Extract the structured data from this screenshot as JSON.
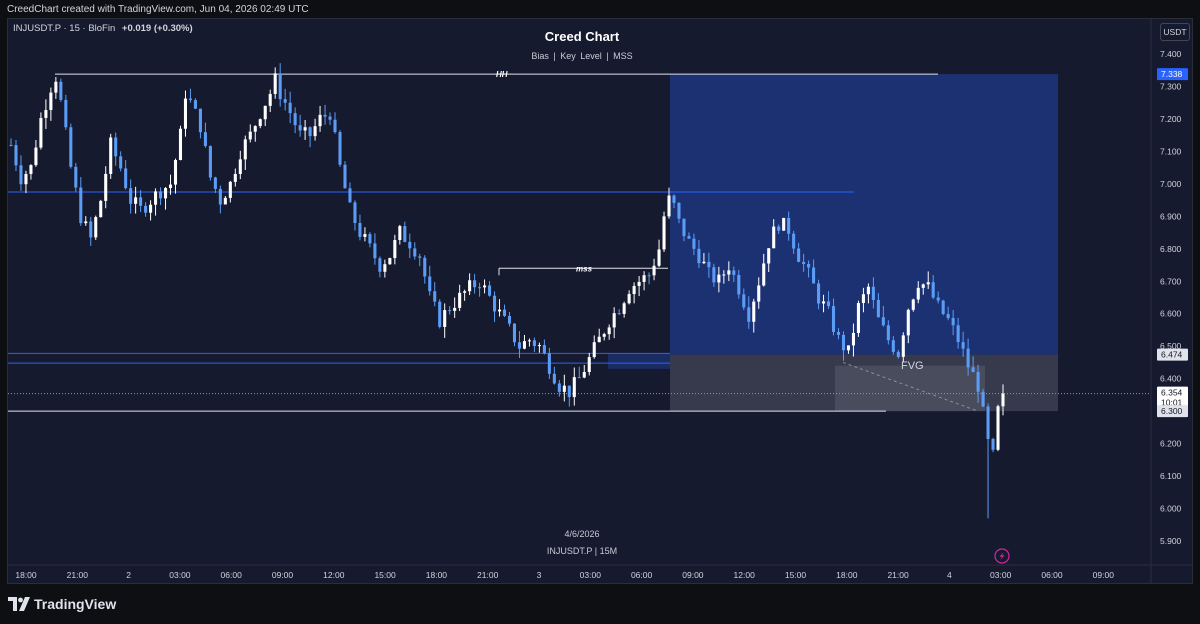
{
  "header": {
    "created_text": "CreedChart created with TradingView.com, Jun 04, 2026 02:49 UTC"
  },
  "legend": {
    "symbol": "INJUSDT.P · 15 · BloFin",
    "change": "+0.019",
    "change_pct": "(+0.30%)"
  },
  "chart": {
    "title": "Creed Chart",
    "subtitle": "Bias  |  Key Level  |  MSS",
    "watermark_date": "4/6/2026",
    "watermark_symbol": "INJUSDT.P  |  15M",
    "currency": "USDT"
  },
  "annotations": {
    "hh": "HH",
    "mss": "mss",
    "fvg": "FVG"
  },
  "price_axis": {
    "ticks": [
      "7.400",
      "7.300",
      "7.200",
      "7.100",
      "7.000",
      "6.900",
      "6.800",
      "6.700",
      "6.600",
      "6.500",
      "6.400",
      "6.200",
      "6.100",
      "6.000",
      "5.900"
    ],
    "tick_values": [
      7.4,
      7.3,
      7.2,
      7.1,
      7.0,
      6.9,
      6.8,
      6.7,
      6.6,
      6.5,
      6.4,
      6.2,
      6.1,
      6.0,
      5.9
    ],
    "badge_top": "7.338",
    "badge_fvg_high": "6.474",
    "badge_last_price": "6.354",
    "badge_countdown": "10:01",
    "badge_fvg_low": "6.300"
  },
  "time_axis": {
    "labels": [
      "18:00",
      "21:00",
      "2",
      "03:00",
      "06:00",
      "09:00",
      "12:00",
      "15:00",
      "18:00",
      "21:00",
      "3",
      "03:00",
      "06:00",
      "09:00",
      "12:00",
      "15:00",
      "18:00",
      "21:00",
      "4",
      "03:00",
      "06:00",
      "09:00"
    ]
  },
  "colors": {
    "background": "#161a2e",
    "candle_up": "#ffffff",
    "candle_down": "#5b9cf6",
    "zone": "#1f3a8a",
    "fvg": "#5d6170",
    "line_blue": "#2962ff",
    "line_white": "#e0e3eb"
  },
  "branding": {
    "logo_text": "TradingView"
  },
  "chart_data": {
    "type": "candlestick",
    "timeframe": "15",
    "ylim": [
      5.87,
      7.43
    ],
    "last_price": 6.354,
    "levels": {
      "hh": 7.338,
      "key_level": 6.975,
      "mss": 6.74,
      "fvg_high": 6.474,
      "fvg_low": 6.3
    },
    "path_points": [
      [
        0,
        7.12
      ],
      [
        2,
        7.02
      ],
      [
        4,
        7.05
      ],
      [
        6,
        7.2
      ],
      [
        8,
        7.3
      ],
      [
        9,
        7.33
      ],
      [
        10,
        7.25
      ],
      [
        12,
        7.05
      ],
      [
        14,
        6.9
      ],
      [
        16,
        6.83
      ],
      [
        18,
        6.95
      ],
      [
        20,
        7.12
      ],
      [
        22,
        7.05
      ],
      [
        24,
        6.95
      ],
      [
        26,
        6.92
      ],
      [
        28,
        6.95
      ],
      [
        30,
        6.98
      ],
      [
        32,
        7.0
      ],
      [
        34,
        7.15
      ],
      [
        35,
        7.28
      ],
      [
        36,
        7.25
      ],
      [
        38,
        7.18
      ],
      [
        40,
        7.02
      ],
      [
        42,
        6.95
      ],
      [
        44,
        7.0
      ],
      [
        46,
        7.1
      ],
      [
        48,
        7.15
      ],
      [
        50,
        7.22
      ],
      [
        52,
        7.28
      ],
      [
        53,
        7.32
      ],
      [
        54,
        7.28
      ],
      [
        56,
        7.22
      ],
      [
        58,
        7.15
      ],
      [
        60,
        7.15
      ],
      [
        62,
        7.2
      ],
      [
        64,
        7.22
      ],
      [
        66,
        7.05
      ],
      [
        68,
        6.92
      ],
      [
        70,
        6.85
      ],
      [
        72,
        6.8
      ],
      [
        74,
        6.75
      ],
      [
        76,
        6.78
      ],
      [
        78,
        6.85
      ],
      [
        80,
        6.82
      ],
      [
        82,
        6.78
      ],
      [
        84,
        6.65
      ],
      [
        86,
        6.58
      ],
      [
        88,
        6.62
      ],
      [
        90,
        6.65
      ],
      [
        92,
        6.68
      ],
      [
        94,
        6.7
      ],
      [
        96,
        6.65
      ],
      [
        98,
        6.6
      ],
      [
        100,
        6.55
      ],
      [
        102,
        6.5
      ],
      [
        104,
        6.52
      ],
      [
        106,
        6.5
      ],
      [
        108,
        6.44
      ],
      [
        110,
        6.38
      ],
      [
        112,
        6.36
      ],
      [
        114,
        6.4
      ],
      [
        116,
        6.46
      ],
      [
        118,
        6.52
      ],
      [
        120,
        6.58
      ],
      [
        122,
        6.62
      ],
      [
        124,
        6.68
      ],
      [
        126,
        6.7
      ],
      [
        128,
        6.72
      ],
      [
        130,
        6.8
      ],
      [
        131,
        6.9
      ],
      [
        132,
        6.95
      ],
      [
        133,
        6.93
      ],
      [
        134,
        6.88
      ],
      [
        136,
        6.82
      ],
      [
        138,
        6.78
      ],
      [
        140,
        6.72
      ],
      [
        142,
        6.7
      ],
      [
        144,
        6.75
      ],
      [
        146,
        6.68
      ],
      [
        148,
        6.6
      ],
      [
        150,
        6.7
      ],
      [
        152,
        6.82
      ],
      [
        154,
        6.88
      ],
      [
        156,
        6.86
      ],
      [
        158,
        6.78
      ],
      [
        160,
        6.72
      ],
      [
        162,
        6.65
      ],
      [
        164,
        6.6
      ],
      [
        166,
        6.52
      ],
      [
        168,
        6.48
      ],
      [
        170,
        6.62
      ],
      [
        172,
        6.68
      ],
      [
        174,
        6.58
      ],
      [
        176,
        6.52
      ],
      [
        178,
        6.48
      ],
      [
        180,
        6.62
      ],
      [
        182,
        6.7
      ],
      [
        184,
        6.68
      ],
      [
        186,
        6.62
      ],
      [
        188,
        6.58
      ],
      [
        190,
        6.52
      ],
      [
        192,
        6.44
      ],
      [
        194,
        6.38
      ],
      [
        196,
        6.2
      ],
      [
        197,
        6.16
      ],
      [
        198,
        6.3
      ],
      [
        199,
        6.354
      ]
    ]
  }
}
